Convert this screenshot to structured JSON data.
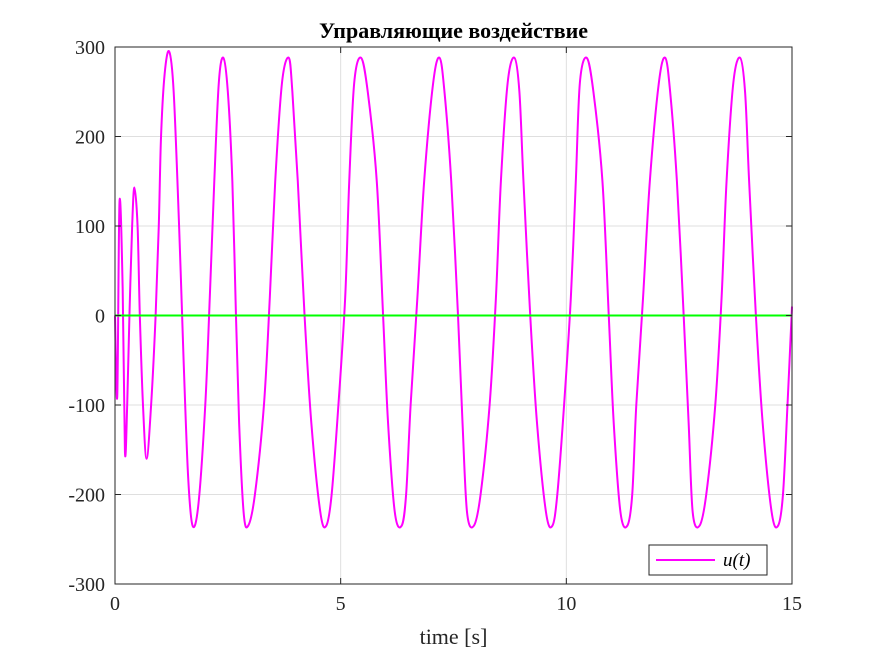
{
  "chart_data": {
    "type": "line",
    "title": "Управляющие воздействие",
    "xlabel": "time [s]",
    "ylabel": "",
    "xlim": [
      0,
      15
    ],
    "ylim": [
      -300,
      300
    ],
    "xticks": [
      0,
      5,
      10,
      15
    ],
    "yticks": [
      -300,
      -200,
      -100,
      0,
      100,
      200,
      300
    ],
    "grid": true,
    "legend_position": "bottom-right",
    "series": [
      {
        "name": "u(t)",
        "legend_label": "u(t)",
        "color": "#ff00ff",
        "x": [
          0,
          0.05,
          0.1,
          0.17,
          0.22,
          0.27,
          0.32,
          0.38,
          0.43,
          0.5,
          0.55,
          0.62,
          0.7,
          0.8,
          0.9,
          0.97,
          1.02,
          1.1,
          1.2,
          1.3,
          1.42,
          1.52,
          1.62,
          1.72,
          1.85,
          2.0,
          2.1,
          2.2,
          2.3,
          2.4,
          2.5,
          2.6,
          2.68,
          2.75,
          2.85,
          2.95,
          3.1,
          3.3,
          3.43,
          3.55,
          3.7,
          3.85,
          3.93,
          4.05,
          4.2,
          4.35,
          4.55,
          4.68,
          4.8,
          4.95,
          5.1,
          5.19,
          5.3,
          5.45,
          5.6,
          5.8,
          5.94,
          6.05,
          6.2,
          6.35,
          6.45,
          6.55,
          6.7,
          6.85,
          7.05,
          7.19,
          7.3,
          7.45,
          7.6,
          7.7,
          7.8,
          7.95,
          8.1,
          8.3,
          8.44,
          8.55,
          8.7,
          8.85,
          8.96,
          9.05,
          9.2,
          9.35,
          9.55,
          9.69,
          9.8,
          9.95,
          10.1,
          10.21,
          10.3,
          10.45,
          10.6,
          10.8,
          10.94,
          11.05,
          11.2,
          11.35,
          11.46,
          11.55,
          11.7,
          11.85,
          12.05,
          12.19,
          12.3,
          12.45,
          12.6,
          12.71,
          12.8,
          12.95,
          13.1,
          13.3,
          13.44,
          13.55,
          13.7,
          13.85,
          13.96,
          14.05,
          14.2,
          14.35,
          14.55,
          14.69,
          14.8,
          14.9,
          15.0
        ],
        "y": [
          0,
          -90,
          127,
          30,
          -152,
          -100,
          0,
          100,
          143,
          100,
          0,
          -100,
          -160,
          -100,
          0,
          100,
          200,
          270,
          295,
          250,
          100,
          -50,
          -180,
          -235,
          -210,
          -100,
          20,
          150,
          260,
          288,
          250,
          150,
          0,
          -120,
          -220,
          -235,
          -200,
          -100,
          20,
          150,
          260,
          288,
          250,
          150,
          0,
          -120,
          -220,
          -235,
          -200,
          -100,
          20,
          150,
          260,
          288,
          250,
          150,
          0,
          -120,
          -220,
          -235,
          -200,
          -100,
          20,
          150,
          260,
          288,
          250,
          150,
          0,
          -120,
          -220,
          -235,
          -200,
          -100,
          20,
          150,
          260,
          288,
          250,
          150,
          0,
          -120,
          -220,
          -235,
          -200,
          -100,
          20,
          150,
          260,
          288,
          250,
          150,
          0,
          -120,
          -220,
          -235,
          -200,
          -100,
          20,
          150,
          260,
          288,
          250,
          150,
          0,
          -120,
          -220,
          -235,
          -200,
          -100,
          20,
          150,
          260,
          288,
          250,
          150,
          0,
          -120,
          -220,
          -235,
          -200,
          -100,
          10
        ]
      },
      {
        "name": "",
        "color": "#00ff00",
        "x": [
          0,
          15
        ],
        "y": [
          0,
          0
        ]
      }
    ]
  }
}
